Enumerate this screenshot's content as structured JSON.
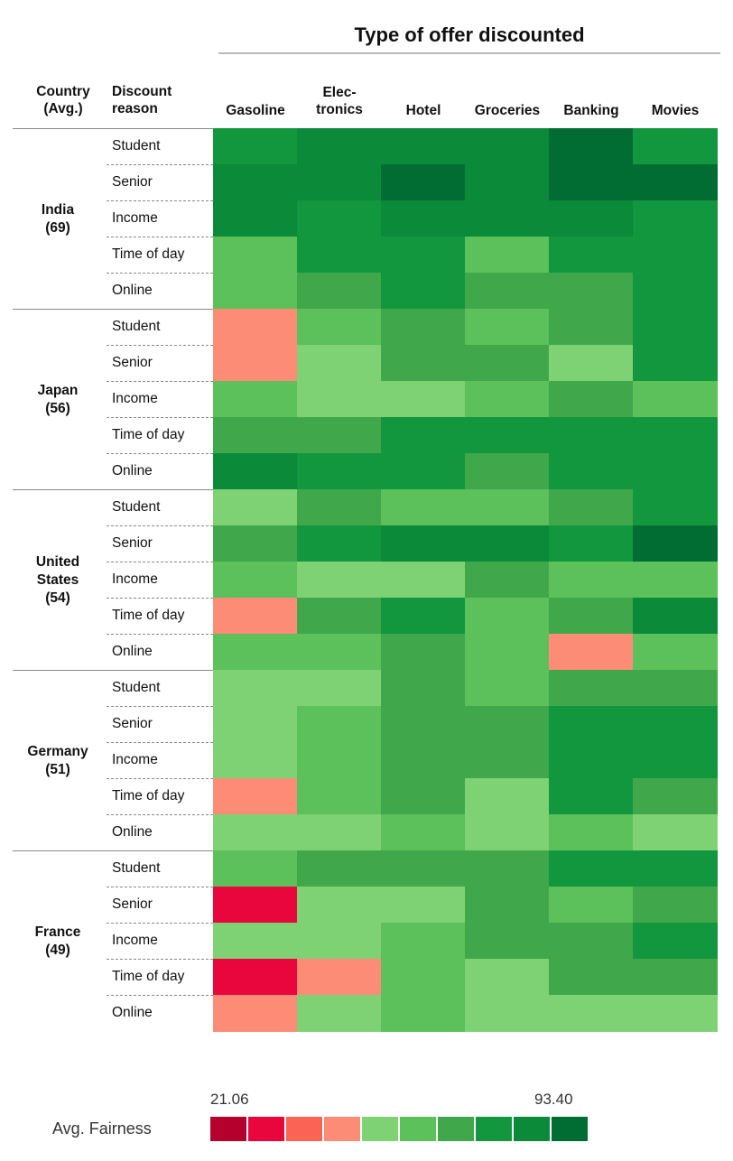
{
  "chart_data": {
    "type": "heatmap",
    "title": "Type of offer discounted",
    "header_country": [
      "Country",
      "(Avg.)"
    ],
    "header_reason": [
      "Discount",
      "reason"
    ],
    "columns": [
      {
        "lines": [
          "Gasoline"
        ]
      },
      {
        "lines": [
          "Elec-",
          "tronics"
        ]
      },
      {
        "lines": [
          "Hotel"
        ]
      },
      {
        "lines": [
          "Groceries"
        ]
      },
      {
        "lines": [
          "Banking"
        ]
      },
      {
        "lines": [
          "Movies"
        ]
      }
    ],
    "groups": [
      {
        "country_lines": [
          "India",
          "(69)"
        ],
        "reasons": [
          "Student",
          "Senior",
          "Income",
          "Time of day",
          "Online"
        ],
        "levels": [
          [
            7,
            8,
            8,
            8,
            9,
            7
          ],
          [
            8,
            8,
            9,
            8,
            9,
            9
          ],
          [
            8,
            7,
            8,
            8,
            8,
            7
          ],
          [
            5,
            7,
            7,
            5,
            7,
            7
          ],
          [
            5,
            6,
            7,
            6,
            6,
            7
          ]
        ]
      },
      {
        "country_lines": [
          "Japan",
          "(56)"
        ],
        "reasons": [
          "Student",
          "Senior",
          "Income",
          "Time of day",
          "Online"
        ],
        "levels": [
          [
            3,
            5,
            6,
            5,
            6,
            7
          ],
          [
            3,
            4,
            6,
            6,
            4,
            7
          ],
          [
            5,
            4,
            4,
            5,
            6,
            5
          ],
          [
            6,
            6,
            7,
            7,
            7,
            7
          ],
          [
            8,
            7,
            7,
            6,
            7,
            7
          ]
        ]
      },
      {
        "country_lines": [
          "United",
          "States",
          "(54)"
        ],
        "reasons": [
          "Student",
          "Senior",
          "Income",
          "Time of day",
          "Online"
        ],
        "levels": [
          [
            4,
            6,
            5,
            5,
            6,
            7
          ],
          [
            6,
            7,
            8,
            8,
            7,
            9
          ],
          [
            5,
            4,
            4,
            6,
            5,
            5
          ],
          [
            3,
            6,
            7,
            5,
            6,
            8
          ],
          [
            5,
            5,
            6,
            5,
            3,
            5
          ]
        ]
      },
      {
        "country_lines": [
          "Germany",
          "(51)"
        ],
        "reasons": [
          "Student",
          "Senior",
          "Income",
          "Time of day",
          "Online"
        ],
        "levels": [
          [
            4,
            4,
            6,
            5,
            6,
            6
          ],
          [
            4,
            5,
            6,
            6,
            7,
            7
          ],
          [
            4,
            5,
            6,
            6,
            7,
            7
          ],
          [
            3,
            5,
            6,
            4,
            7,
            6
          ],
          [
            4,
            4,
            5,
            4,
            5,
            4
          ]
        ]
      },
      {
        "country_lines": [
          "France",
          "(49)"
        ],
        "reasons": [
          "Student",
          "Senior",
          "Income",
          "Time of day",
          "Online"
        ],
        "levels": [
          [
            5,
            6,
            6,
            6,
            7,
            7
          ],
          [
            1,
            4,
            4,
            6,
            5,
            6
          ],
          [
            4,
            4,
            5,
            6,
            6,
            7
          ],
          [
            1,
            3,
            5,
            4,
            6,
            6
          ],
          [
            3,
            4,
            5,
            4,
            4,
            4
          ]
        ]
      }
    ],
    "legend": {
      "title": "Avg. Fairness",
      "min_label": "21.06",
      "max_label": "93.40",
      "colors": [
        "#b5002e",
        "#e8063d",
        "#fb6354",
        "#fd8c77",
        "#7fd274",
        "#5cc05b",
        "#40a84a",
        "#12973f",
        "#0b8a3a",
        "#016d33"
      ]
    }
  }
}
